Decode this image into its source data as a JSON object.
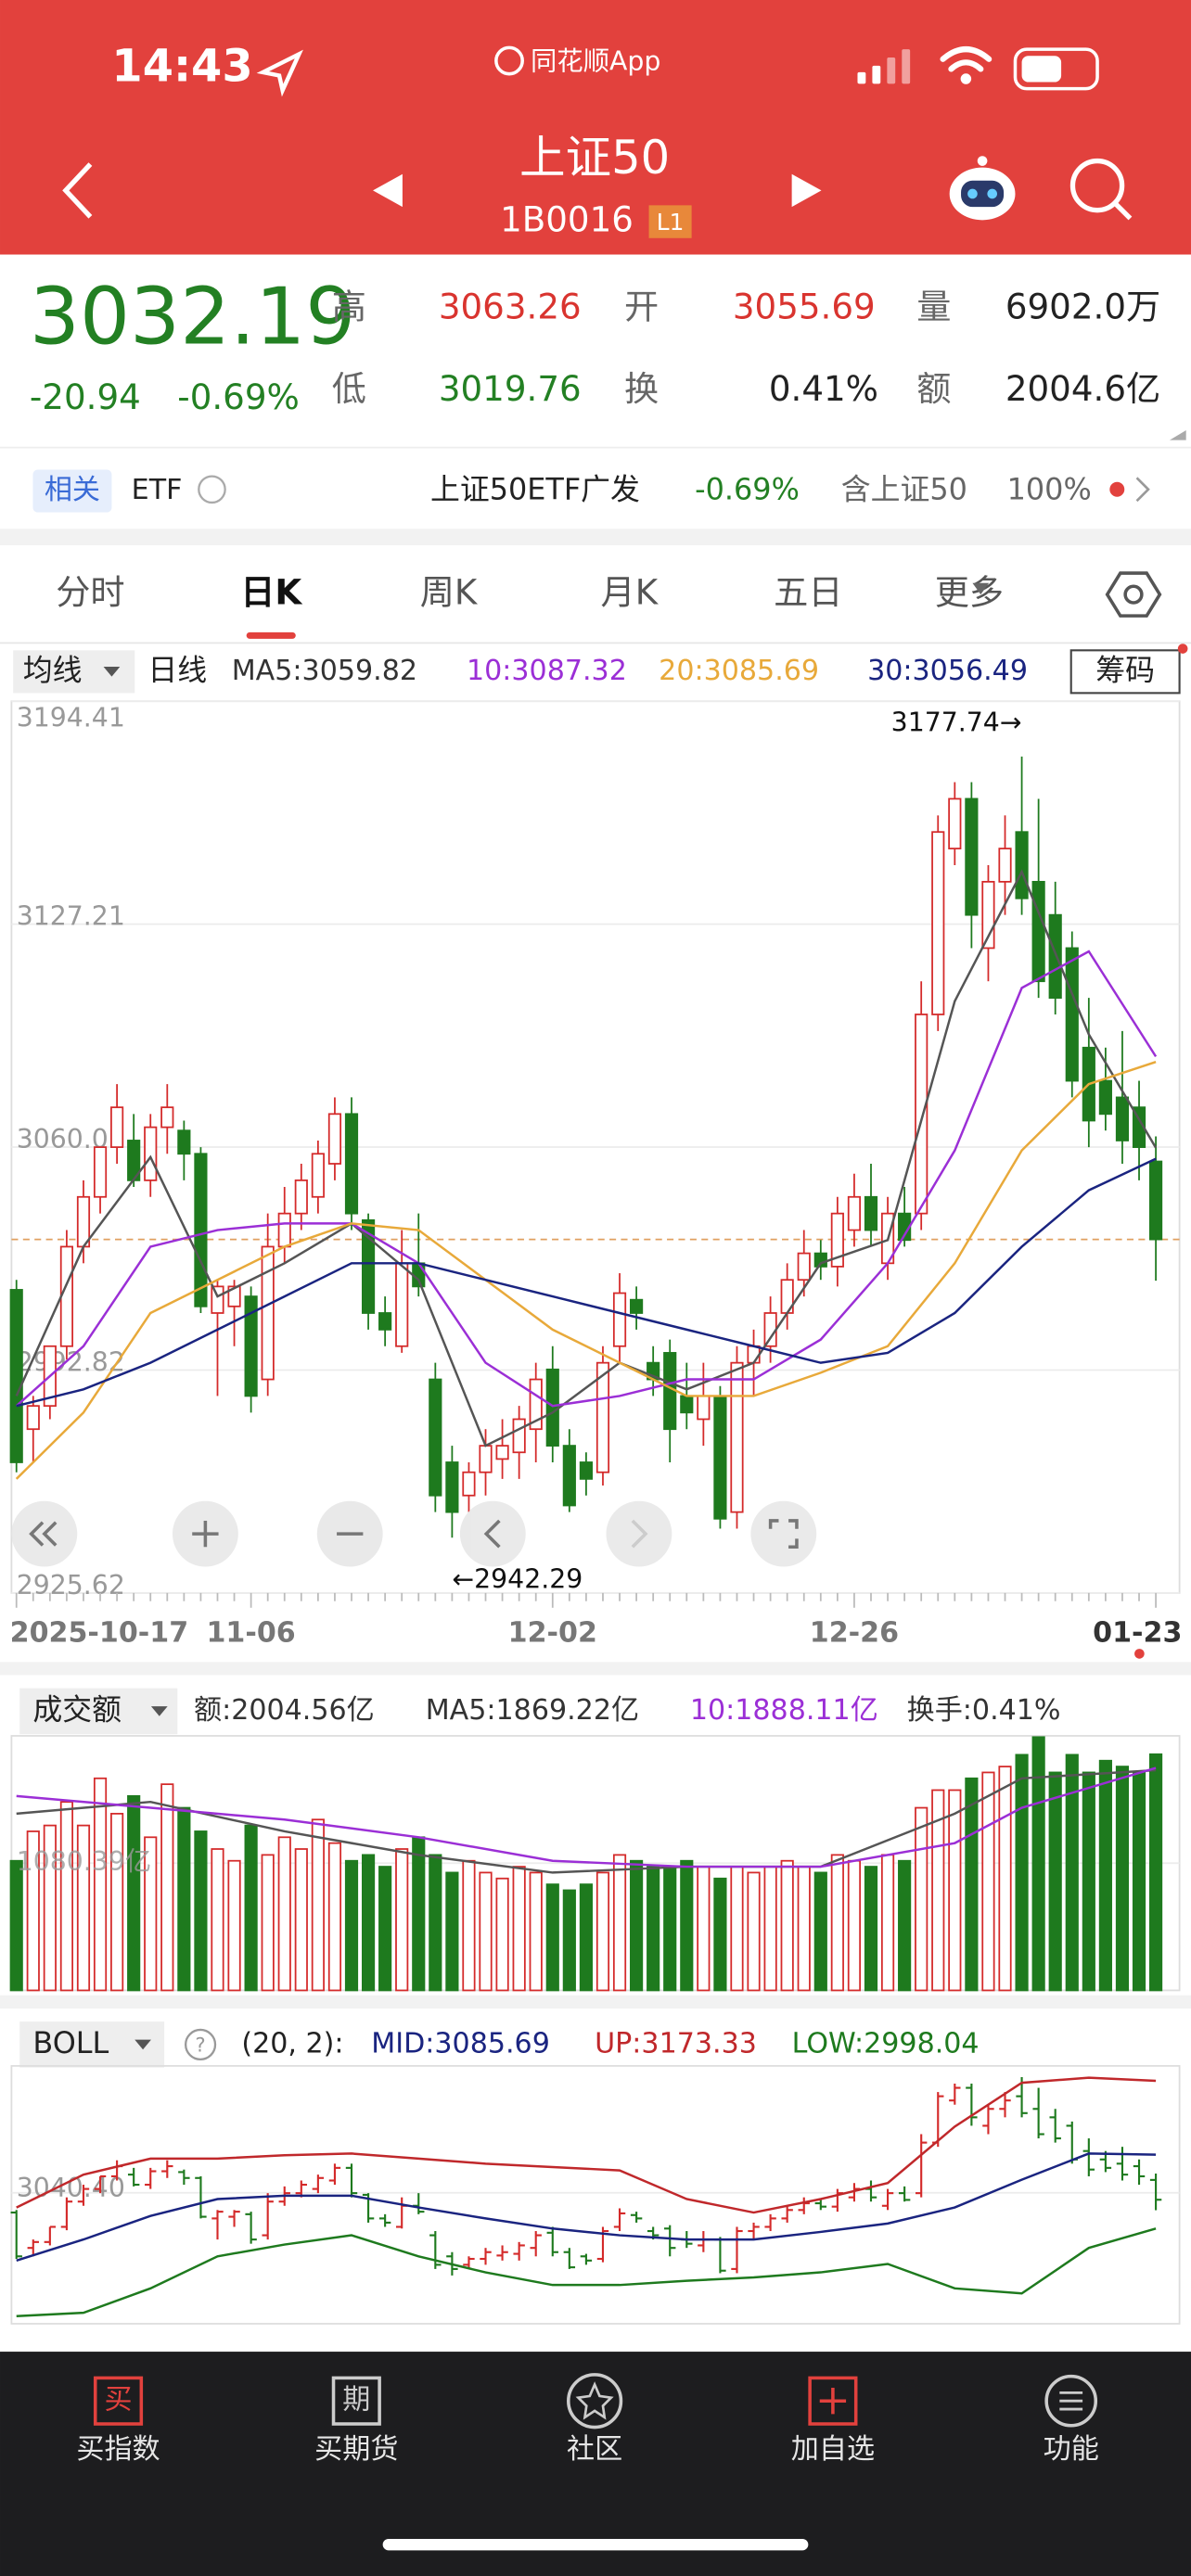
{
  "status_bar": {
    "time": "14:43",
    "app": "同花顺App"
  },
  "header": {
    "title": "上证50",
    "code": "1B0016",
    "badge": "L1"
  },
  "quote": {
    "price": "3032.19",
    "change": "-20.94",
    "change_pct": "-0.69%",
    "stats": [
      {
        "label": "高",
        "value": "3063.26"
      },
      {
        "label": "开",
        "value": "3055.69"
      },
      {
        "label": "量",
        "value": "6902.0万"
      },
      {
        "label": "低",
        "value": "3019.76"
      },
      {
        "label": "换",
        "value": "0.41%"
      },
      {
        "label": "额",
        "value": "2004.6亿"
      }
    ]
  },
  "etf_bar": {
    "tag": "相关",
    "etf": "ETF",
    "name": "上证50ETF广发",
    "change": "-0.69%",
    "holding": "含上证50",
    "weight": "100%"
  },
  "tabs": [
    "分时",
    "日K",
    "周K",
    "月K",
    "五日",
    "更多"
  ],
  "kline": {
    "type": "candlestick",
    "selector": "均线",
    "period": "日线",
    "chips": "筹码",
    "legend": [
      {
        "text": "MA5:3059.82",
        "color": "#333333"
      },
      {
        "text": "10:3087.32",
        "color": "#9b2fd6"
      },
      {
        "text": "20:3085.69",
        "color": "#e8a93a"
      },
      {
        "text": "30:3056.49",
        "color": "#1a2480"
      }
    ],
    "ylim": [
      2925.62,
      3194.41
    ],
    "yticks": [
      3194.41,
      3127.21,
      3060.02,
      2992.82,
      2925.62
    ],
    "grid": true,
    "up_color": "#d42a2a",
    "down_color": "#1e7a1e",
    "high_label": "3177.74→",
    "low_label": "←2942.29",
    "categories": [
      "2025-10-17",
      null,
      null,
      null,
      null,
      null,
      null,
      null,
      null,
      null,
      null,
      null,
      null,
      null,
      "11-06",
      null,
      null,
      null,
      null,
      null,
      null,
      null,
      null,
      null,
      null,
      null,
      null,
      null,
      null,
      null,
      null,
      null,
      "12-02",
      null,
      null,
      null,
      null,
      null,
      null,
      null,
      null,
      null,
      null,
      null,
      null,
      null,
      null,
      null,
      null,
      null,
      "12-26",
      null,
      null,
      null,
      null,
      null,
      null,
      null,
      null,
      null,
      null,
      null,
      null,
      null,
      null,
      null,
      null,
      null,
      "01-23"
    ],
    "open": [
      3017,
      2975,
      2982,
      3000,
      3030,
      3045,
      3060,
      3062,
      3050,
      3066,
      3065,
      3058,
      3010,
      3012,
      3015,
      2990,
      3030,
      3040,
      3045,
      3055,
      3070,
      3038,
      3010,
      3000,
      3025,
      2990,
      2965,
      2955,
      2962,
      2966,
      2968,
      2975,
      2993,
      2970,
      2965,
      2962,
      3000,
      3014,
      2995,
      2998,
      2985,
      2978,
      2985,
      2950,
      2995,
      3000,
      3010,
      3020,
      3028,
      3024,
      3035,
      3045,
      3025,
      3040,
      3040,
      3100,
      3150,
      3165,
      3120,
      3140,
      3155,
      3140,
      3130,
      3120,
      3090,
      3080,
      3075,
      3072,
      3055.69
    ],
    "high": [
      3020,
      2985,
      3000,
      3035,
      3050,
      3060,
      3079,
      3070,
      3070,
      3079,
      3068,
      3060,
      3020,
      3020,
      3018,
      3040,
      3048,
      3055,
      3062,
      3075,
      3075,
      3040,
      3015,
      3035,
      3040,
      2995,
      2970,
      2965,
      2975,
      2978,
      2982,
      2995,
      3000,
      2975,
      2968,
      3000,
      3022,
      3018,
      3000,
      3002,
      2995,
      2995,
      2988,
      3000,
      3005,
      3015,
      3025,
      3035,
      3032,
      3045,
      3052,
      3055,
      3045,
      3048,
      3110,
      3160,
      3170,
      3170,
      3145,
      3160,
      3177.74,
      3165,
      3140,
      3125,
      3105,
      3090,
      3095,
      3080,
      3063.26
    ],
    "low": [
      2962,
      2965,
      2978,
      2996,
      3025,
      3040,
      3055,
      3048,
      3045,
      3058,
      3050,
      3010,
      2985,
      3000,
      2980,
      2985,
      3025,
      3035,
      3040,
      3050,
      3035,
      3005,
      3000,
      2998,
      3015,
      2950,
      2942.29,
      2950,
      2955,
      2960,
      2960,
      2965,
      2965,
      2950,
      2955,
      2958,
      2995,
      3005,
      2985,
      2965,
      2975,
      2970,
      2945,
      2945,
      2985,
      2995,
      3005,
      3015,
      3020,
      3018,
      3030,
      3030,
      3020,
      3030,
      3035,
      3095,
      3145,
      3120,
      3110,
      3130,
      3130,
      3105,
      3100,
      3075,
      3060,
      3065,
      3055,
      3050,
      3019.76
    ],
    "close": [
      2965,
      2982,
      3000,
      3030,
      3045,
      3060,
      3072,
      3050,
      3066,
      3072,
      3058,
      3012,
      3018,
      3018,
      2985,
      3030,
      3040,
      3050,
      3058,
      3070,
      3040,
      3010,
      3005,
      3025,
      3018,
      2955,
      2950,
      2962,
      2970,
      2970,
      2978,
      2990,
      2970,
      2952,
      2960,
      2995,
      3016,
      3010,
      2990,
      2975,
      2980,
      2985,
      2948,
      2995,
      3000,
      3010,
      3020,
      3028,
      3024,
      3040,
      3045,
      3035,
      3040,
      3032,
      3100,
      3155,
      3165,
      3130,
      3140,
      3150,
      3135,
      3110,
      3105,
      3080,
      3068,
      3070,
      3062,
      3060,
      3032.19
    ],
    "ma_lines": [
      {
        "color": "#555555",
        "x": [
          0,
          4,
          8,
          12,
          16,
          20,
          24,
          28,
          32,
          36,
          40,
          44,
          48,
          52,
          56,
          60,
          64,
          68
        ],
        "values": [
          2985,
          3030,
          3057,
          3015,
          3025,
          3037,
          3020,
          2970,
          2980,
          2995,
          2987,
          2995,
          3025,
          3032,
          3104,
          3143,
          3094,
          3059.82
        ]
      },
      {
        "color": "#9b2fd6",
        "x": [
          0,
          4,
          8,
          12,
          16,
          20,
          24,
          28,
          32,
          36,
          40,
          44,
          48,
          52,
          56,
          60,
          64,
          68
        ],
        "values": [
          2982,
          3000,
          3030,
          3035,
          3037,
          3037,
          3025,
          2995,
          2982,
          2985,
          2990,
          2990,
          3002,
          3025,
          3059,
          3108,
          3119,
          3087.32
        ]
      },
      {
        "color": "#e8a93a",
        "x": [
          0,
          4,
          8,
          12,
          16,
          20,
          24,
          28,
          32,
          36,
          40,
          44,
          48,
          52,
          56,
          60,
          64,
          68
        ],
        "values": [
          2960,
          2980,
          3010,
          3020,
          3030,
          3037,
          3035,
          3020,
          3005,
          2995,
          2985,
          2985,
          2992,
          3000,
          3025,
          3059,
          3079,
          3085.69
        ]
      },
      {
        "color": "#1a2480",
        "x": [
          0,
          4,
          8,
          12,
          16,
          20,
          24,
          28,
          32,
          36,
          40,
          44,
          48,
          52,
          56,
          60,
          64,
          68
        ],
        "values": [
          2982,
          2987,
          2995,
          3005,
          3015,
          3025,
          3025,
          3020,
          3015,
          3010,
          3005,
          3000,
          2995,
          2998,
          3010,
          3030,
          3047,
          3056.49
        ]
      }
    ]
  },
  "volume": {
    "type": "bar",
    "selector": "成交额",
    "legend": [
      {
        "text": "额:2004.56亿",
        "color": "#333333"
      },
      {
        "text": "MA5:1869.22亿",
        "color": "#333333"
      },
      {
        "text": "10:1888.11亿",
        "color": "#9b2fd6"
      },
      {
        "text": "换手:0.41%",
        "color": "#333333"
      }
    ],
    "ylim": [
      0,
      2160.78
    ],
    "yticks": [
      {
        "value": 1080.39,
        "label": "1080.39亿"
      }
    ],
    "values": [
      1100,
      1350,
      1400,
      1600,
      1400,
      1800,
      1500,
      1650,
      1300,
      1750,
      1550,
      1350,
      1200,
      1100,
      1400,
      1150,
      1300,
      1200,
      1450,
      1250,
      1100,
      1150,
      1050,
      1200,
      1300,
      1150,
      1000,
      1100,
      1000,
      950,
      1050,
      1000,
      900,
      850,
      900,
      1000,
      1150,
      1100,
      1050,
      1050,
      1100,
      1050,
      950,
      1050,
      1000,
      1050,
      1100,
      1050,
      1000,
      1150,
      1100,
      1050,
      1150,
      1100,
      1550,
      1700,
      1700,
      1800,
      1850,
      1900,
      2000,
      2150,
      1850,
      2000,
      1850,
      1950,
      1900,
      1850,
      2004.56
    ],
    "ma_lines": [
      {
        "color": "#555555",
        "x": [
          0,
          8,
          16,
          24,
          32,
          40,
          48,
          56,
          60,
          68
        ],
        "values": [
          1500,
          1600,
          1350,
          1150,
          1000,
          1050,
          1050,
          1500,
          1800,
          1869.22
        ]
      },
      {
        "color": "#9b2fd6",
        "x": [
          0,
          8,
          16,
          24,
          32,
          40,
          48,
          56,
          60,
          68
        ],
        "values": [
          1650,
          1550,
          1450,
          1300,
          1100,
          1050,
          1050,
          1250,
          1550,
          1888.11
        ]
      }
    ]
  },
  "boll": {
    "type": "ohlc",
    "selector": "BOLL",
    "params": "(20, 2):",
    "legend": [
      {
        "text": "MID:3085.69",
        "color": "#1a2480"
      },
      {
        "text": "UP:3173.33",
        "color": "#c0282b"
      },
      {
        "text": "LOW:2998.04",
        "color": "#1e7a1e"
      }
    ],
    "ylim": [
      2885,
      3191
    ],
    "yticks": [
      {
        "value": 3040.4,
        "label": "3040.40"
      }
    ],
    "lines": [
      {
        "color": "#c0282b",
        "x": [
          0,
          4,
          8,
          12,
          16,
          20,
          24,
          28,
          32,
          36,
          40,
          44,
          48,
          52,
          56,
          60,
          64,
          68
        ],
        "values": [
          3023,
          3062,
          3081,
          3081,
          3085,
          3087,
          3081,
          3075,
          3071,
          3067,
          3033,
          3017,
          3033,
          3052,
          3119,
          3171,
          3177,
          3173.33
        ]
      },
      {
        "color": "#1a2480",
        "x": [
          0,
          4,
          8,
          12,
          16,
          20,
          24,
          28,
          32,
          36,
          40,
          44,
          48,
          52,
          56,
          60,
          64,
          68
        ],
        "values": [
          2960,
          2985,
          3013,
          3033,
          3037,
          3037,
          3023,
          3010,
          2998,
          2990,
          2985,
          2985,
          2994,
          3004,
          3023,
          3056,
          3087,
          3085.69
        ]
      },
      {
        "color": "#1e7a1e",
        "x": [
          0,
          4,
          8,
          12,
          16,
          20,
          24,
          28,
          32,
          36,
          40,
          44,
          48,
          52,
          56,
          60,
          64,
          68
        ],
        "values": [
          2894,
          2898,
          2927,
          2965,
          2979,
          2990,
          2965,
          2946,
          2931,
          2931,
          2936,
          2940,
          2946,
          2956,
          2927,
          2921,
          2975,
          2998.04
        ]
      }
    ]
  },
  "bottom_nav": [
    {
      "icon": "买",
      "label": "买指数"
    },
    {
      "icon": "期",
      "label": "买期货"
    },
    {
      "label": "社区"
    },
    {
      "label": "加自选"
    },
    {
      "label": "功能"
    }
  ]
}
